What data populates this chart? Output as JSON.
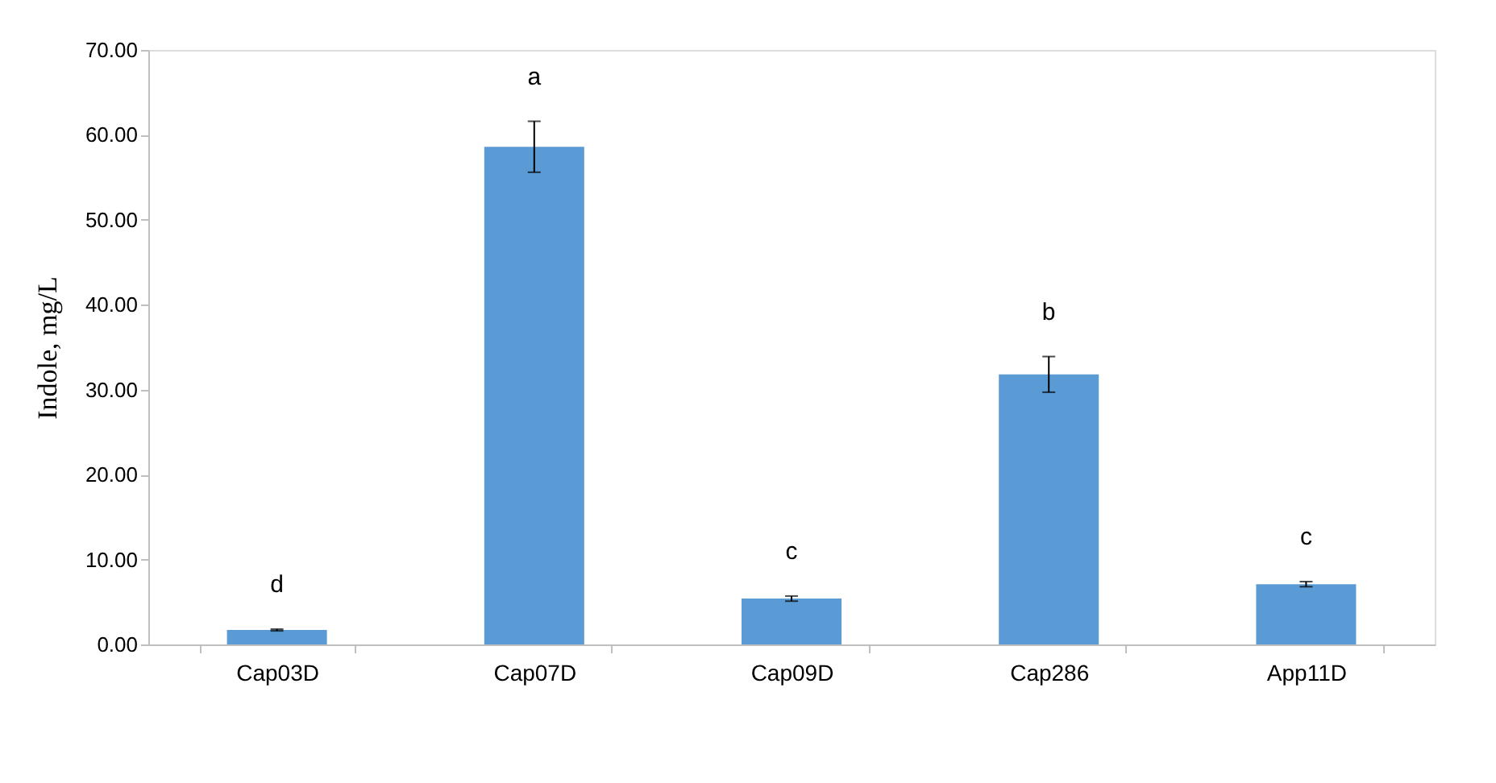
{
  "chart_data": {
    "type": "bar",
    "ylabel": "Indole, mg/L",
    "categories": [
      "Cap03D",
      "Cap07D",
      "Cap09D",
      "Cap286",
      "App11D"
    ],
    "values": [
      1.7,
      58.6,
      5.4,
      31.8,
      7.1
    ],
    "errors": [
      0.1,
      3.0,
      0.3,
      2.1,
      0.3
    ],
    "color": "#5b9bd5",
    "ylim": [
      0,
      70
    ],
    "yticks": [
      {
        "value": 0,
        "label": "0.00"
      },
      {
        "value": 10,
        "label": "10.00"
      },
      {
        "value": 20,
        "label": "20.00"
      },
      {
        "value": 30,
        "label": "30.00"
      },
      {
        "value": 40,
        "label": "40.00"
      },
      {
        "value": 50,
        "label": "50.00"
      },
      {
        "value": 60,
        "label": "60.00"
      },
      {
        "value": 70,
        "label": "70.00"
      }
    ],
    "annotations": [
      "d",
      "a",
      "c",
      "b",
      "c"
    ],
    "grid": false
  }
}
